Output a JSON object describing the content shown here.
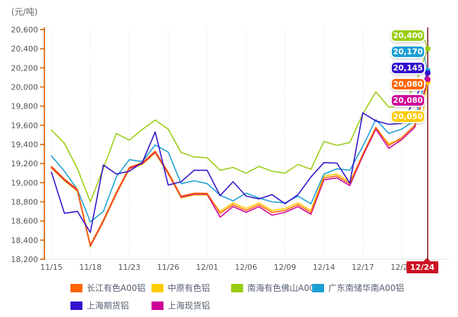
{
  "unit_label": "(元/吨)",
  "colors": {
    "axis": "#dd7722",
    "grid": "#dcdcdc",
    "baseline": "#e0e0e0",
    "tick_text": "#555555",
    "crosshair_line": "#9a4a55",
    "crosshair_box": "#cc1122"
  },
  "axis": {
    "y_tick_labels": [
      "20,600",
      "20,400",
      "20,200",
      "20,000",
      "19,800",
      "19,600",
      "19,400",
      "19,200",
      "19,000",
      "18,800",
      "18,600",
      "18,400",
      "18,200"
    ],
    "x_tick_labels": [
      "11/15",
      "11/18",
      "11/23",
      "11/26",
      "12/01",
      "12/06",
      "12/09",
      "12/14",
      "12/17",
      "12/22"
    ],
    "x_tick_indices": [
      0,
      3,
      6,
      9,
      12,
      15,
      18,
      21,
      24,
      27
    ]
  },
  "chart_data": {
    "type": "line",
    "title": "",
    "xlabel": "",
    "ylabel": "(元/吨)",
    "ylim": [
      18200,
      20600
    ],
    "grid": "vertical-dotted",
    "legend_position": "bottom",
    "x": [
      "11/15",
      "11/16",
      "11/17",
      "11/18",
      "11/19",
      "11/22",
      "11/23",
      "11/24",
      "11/25",
      "11/26",
      "11/29",
      "11/30",
      "12/01",
      "12/02",
      "12/03",
      "12/06",
      "12/07",
      "12/08",
      "12/09",
      "12/10",
      "12/13",
      "12/14",
      "12/15",
      "12/16",
      "12/17",
      "12/20",
      "12/21",
      "12/22",
      "12/23",
      "12/24"
    ],
    "series": [
      {
        "name": "长江有色A00铝",
        "color": "#ff6600",
        "values": [
          19170,
          19040,
          18930,
          18350,
          18610,
          18900,
          19160,
          19210,
          19330,
          19110,
          18860,
          18890,
          18890,
          18680,
          18770,
          18710,
          18770,
          18690,
          18710,
          18770,
          18690,
          19050,
          19070,
          18990,
          19300,
          19580,
          19390,
          19470,
          19600,
          20080
        ]
      },
      {
        "name": "中原有色铝",
        "color": "#ffcc00",
        "values": [
          19150,
          19020,
          18910,
          18330,
          18590,
          18880,
          19140,
          19190,
          19310,
          19090,
          18840,
          18870,
          18870,
          18700,
          18790,
          18730,
          18790,
          18710,
          18730,
          18790,
          18710,
          19070,
          19090,
          19010,
          19280,
          19560,
          19410,
          19450,
          19580,
          20050
        ]
      },
      {
        "name": "南海有色佛山A00铝",
        "color": "#99cc11",
        "values": [
          19550,
          19410,
          19150,
          18800,
          19150,
          19515,
          19445,
          19555,
          19655,
          19560,
          19315,
          19270,
          19260,
          19130,
          19160,
          19100,
          19170,
          19120,
          19100,
          19190,
          19140,
          19430,
          19390,
          19420,
          19720,
          19950,
          19790,
          19800,
          20010,
          20400
        ]
      },
      {
        "name": "广东南储华南A00铝",
        "color": "#1c9fd6",
        "values": [
          19280,
          19120,
          18930,
          18590,
          18700,
          19060,
          19240,
          19220,
          19395,
          19320,
          18990,
          19020,
          18990,
          18870,
          18810,
          18890,
          18840,
          18800,
          18790,
          18860,
          18780,
          19090,
          19145,
          19130,
          19380,
          19660,
          19515,
          19560,
          19650,
          20170
        ]
      },
      {
        "name": "上海期货铝",
        "color": "#3311cc",
        "values": [
          19110,
          18680,
          18700,
          18480,
          19185,
          19090,
          19120,
          19210,
          19530,
          18975,
          19010,
          19130,
          19130,
          18865,
          19010,
          18860,
          18830,
          18875,
          18780,
          18875,
          19060,
          19210,
          19205,
          18995,
          19730,
          19645,
          19610,
          19620,
          19870,
          20145
        ]
      },
      {
        "name": "上海现货铝",
        "color": "#cc0099",
        "values": [
          19160,
          19030,
          18920,
          18340,
          18600,
          18890,
          19150,
          19200,
          19320,
          19100,
          18850,
          18880,
          18880,
          18640,
          18750,
          18690,
          18750,
          18660,
          18690,
          18750,
          18670,
          19030,
          19050,
          18970,
          19280,
          19560,
          19360,
          19450,
          19580,
          20080
        ]
      }
    ],
    "end_labels": [
      {
        "text": "20,400",
        "value": 20400,
        "color": "#99cc11"
      },
      {
        "text": "20,170",
        "value": 20170,
        "color": "#1c9fd6"
      },
      {
        "text": "20,145",
        "value": 20145,
        "color": "#3311cc"
      },
      {
        "text": "20,080",
        "value": 20080,
        "color": "#ff6600"
      },
      {
        "text": "20,080",
        "value": 20080,
        "color": "#cc0099"
      },
      {
        "text": "20,050",
        "value": 20050,
        "color": "#ffcc00"
      }
    ],
    "crosshair_date": "12/24"
  },
  "legend": {
    "rows": [
      [
        {
          "label": "长江有色A00铝",
          "color": "#ff6600"
        },
        {
          "label": "中原有色铝",
          "color": "#ffcc00"
        },
        {
          "label": "南海有色佛山A00铝",
          "color": "#99cc11"
        },
        {
          "label": "广东南储华南A00铝",
          "color": "#1c9fd6"
        }
      ],
      [
        {
          "label": "上海期货铝",
          "color": "#3311cc"
        },
        {
          "label": "上海现货铝",
          "color": "#cc0099"
        }
      ]
    ]
  }
}
